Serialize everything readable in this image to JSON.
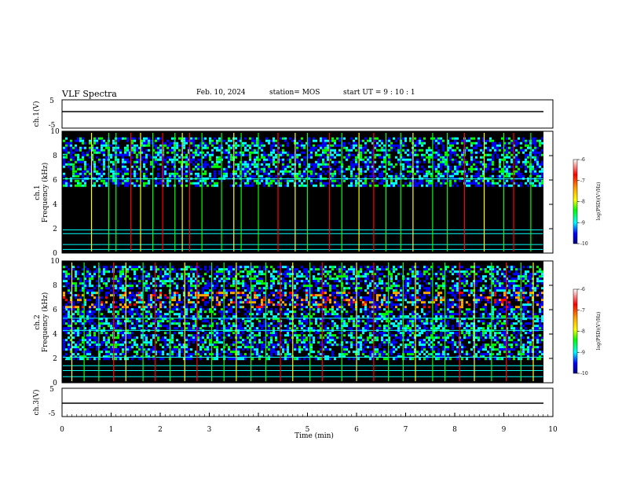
{
  "header": {
    "title": "VLF Spectra",
    "date": "Feb. 10, 2024",
    "station": "station= MOS",
    "start_ut": "start  UT  =   9  : 10 : 1"
  },
  "chart_data": [
    {
      "type": "line",
      "panel": "ch.1 waveform",
      "ylabel": "ch.1(V)",
      "yticks": [
        "5",
        "-5"
      ],
      "ylim": [
        -5,
        5
      ],
      "series": [
        {
          "values": [
            1.2,
            1.2
          ]
        }
      ]
    },
    {
      "type": "heatmap",
      "panel": "ch.1 spectrogram",
      "ylabel": "ch.1\nFrequency (kHz)",
      "yticks": [
        "0",
        "2",
        "4",
        "6",
        "8",
        "10"
      ],
      "ylim": [
        0,
        10
      ],
      "xlim": [
        0,
        9.8
      ],
      "colorbar": {
        "label": "log(PSD)(V²/Hz)",
        "ticks": [
          "-6",
          "-7",
          "-8",
          "-9",
          "-10"
        ],
        "range": [
          -10,
          -6
        ]
      },
      "band_khz": [
        5.5,
        9.5
      ],
      "lines_khz": [
        0.3,
        0.7,
        1.6,
        1.9,
        6.1
      ],
      "spikes_min": [
        0.6,
        0.95,
        1.1,
        1.4,
        1.6,
        1.85,
        2.05,
        2.3,
        2.45,
        2.6,
        2.85,
        3.25,
        3.5,
        3.65,
        4.0,
        4.4,
        4.75,
        5.0,
        5.45,
        5.7,
        6.05,
        6.35,
        6.6,
        6.9,
        7.15,
        7.55,
        7.85,
        8.2,
        8.6,
        9.0,
        9.2,
        9.55
      ]
    },
    {
      "type": "heatmap",
      "panel": "ch.2 spectrogram",
      "ylabel": "ch.2\nFrequency (kHz)",
      "yticks": [
        "0",
        "2",
        "4",
        "6",
        "8",
        "10"
      ],
      "ylim": [
        0,
        10
      ],
      "xlim": [
        0,
        9.8
      ],
      "colorbar": {
        "label": "log(PSD)(V²/Hz)",
        "ticks": [
          "-6",
          "-7",
          "-8",
          "-9",
          "-10"
        ],
        "range": [
          -10,
          -6
        ]
      },
      "band_khz": [
        2.0,
        9.6
      ],
      "hot_band_khz": [
        6.2,
        7.6
      ],
      "lines_khz": [
        0.5,
        1.0,
        1.4,
        2.1,
        4.3,
        5.3
      ],
      "spikes_min": [
        0.2,
        0.45,
        0.75,
        1.05,
        1.3,
        1.65,
        1.9,
        2.2,
        2.5,
        2.75,
        3.05,
        3.3,
        3.55,
        3.85,
        4.15,
        4.45,
        4.7,
        5.05,
        5.3,
        5.7,
        6.0,
        6.35,
        6.65,
        6.95,
        7.2,
        7.55,
        7.8,
        8.1,
        8.4,
        8.75,
        9.05,
        9.35,
        9.6
      ]
    },
    {
      "type": "line",
      "panel": "ch.3 waveform",
      "ylabel": "ch.3(V)",
      "yticks": [
        "5",
        "-5"
      ],
      "ylim": [
        -5,
        5
      ],
      "series": [
        {
          "values": [
            -1.2,
            -1.2
          ]
        }
      ]
    }
  ],
  "xaxis": {
    "label": "Time  (min)",
    "ticks": [
      "0",
      "1",
      "2",
      "3",
      "4",
      "5",
      "6",
      "7",
      "8",
      "9",
      "10"
    ],
    "xlim": [
      0,
      10
    ]
  },
  "colors": {
    "background": "#000000",
    "axis": "#000000",
    "colormap": [
      "#ffffff",
      "#ff0000",
      "#ffaa00",
      "#ffff00",
      "#00ff00",
      "#00ffff",
      "#0000ff",
      "#000080"
    ]
  }
}
